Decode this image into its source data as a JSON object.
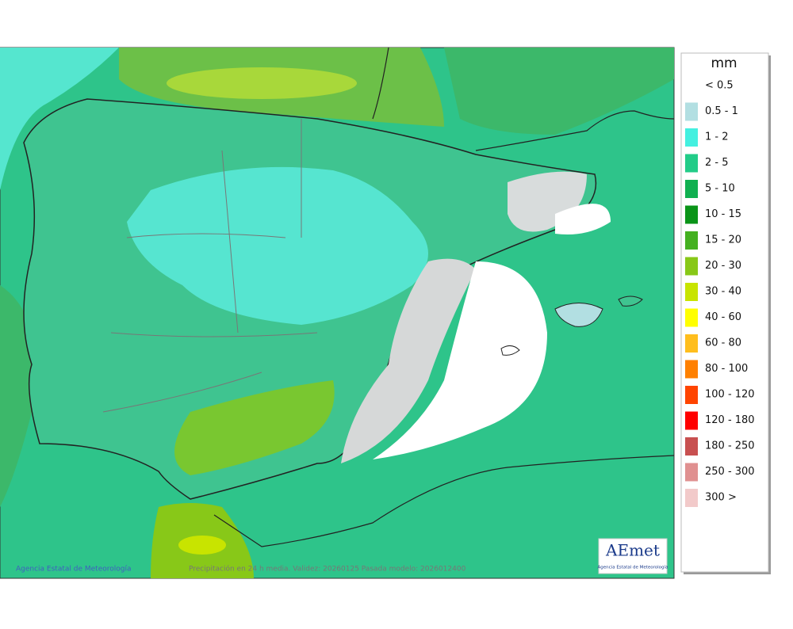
{
  "legend": {
    "title": "mm",
    "items": [
      {
        "label": "< 0.5",
        "color": "#ffffff"
      },
      {
        "label": "0.5 - 1",
        "color": "#b2dfe2"
      },
      {
        "label": "1 - 2",
        "color": "#44f0e0"
      },
      {
        "label": "2 - 5",
        "color": "#22cc88"
      },
      {
        "label": "5 - 10",
        "color": "#10b050"
      },
      {
        "label": "10 - 15",
        "color": "#0a9418"
      },
      {
        "label": "15 - 20",
        "color": "#44b020"
      },
      {
        "label": "20 - 30",
        "color": "#88c818"
      },
      {
        "label": "30 - 40",
        "color": "#c8e400"
      },
      {
        "label": "40 - 60",
        "color": "#ffff00"
      },
      {
        "label": "60 - 80",
        "color": "#ffbe1e"
      },
      {
        "label": "80 - 100",
        "color": "#ff8000"
      },
      {
        "label": "100 - 120",
        "color": "#ff4400"
      },
      {
        "label": "120 - 180",
        "color": "#ff0000"
      },
      {
        "label": "180 - 250",
        "color": "#c85050"
      },
      {
        "label": "250 - 300",
        "color": "#e09090"
      },
      {
        "label": "300 >",
        "color": "#f2caca"
      }
    ]
  },
  "credit": "Agencia Estatal de Meteorología",
  "caption": "Precipitación en 24 h media. Validez: 20260125 Pasada modelo: 2026012400",
  "logo": {
    "name": "AEmet",
    "subtitle": "Agencia Estatal de Meteorología"
  }
}
